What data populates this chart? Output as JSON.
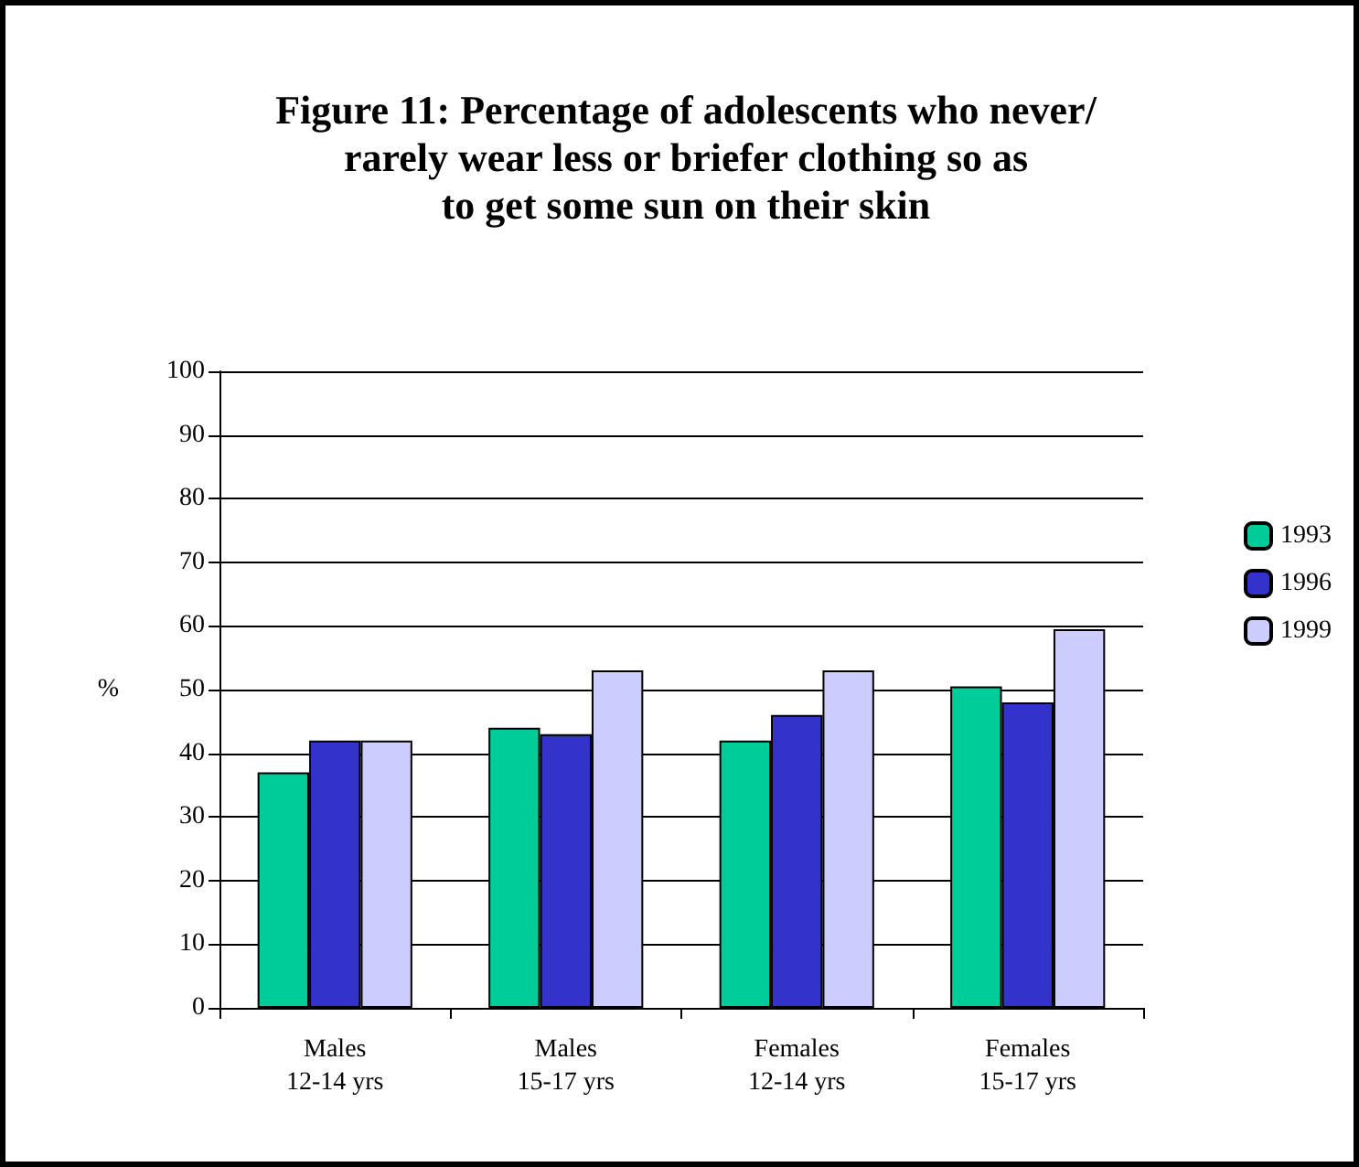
{
  "chart_data": {
    "type": "bar",
    "title": "Figure 11: Percentage of adolescents who never/\nrarely wear less or briefer clothing so as\nto get some sun on their skin",
    "ylabel": "%",
    "categories": [
      "Males\n12-14 yrs",
      "Males\n15-17 yrs",
      "Females\n12-14 yrs",
      "Females\n15-17 yrs"
    ],
    "series": [
      {
        "name": "1993",
        "color": "#00cc99",
        "values": [
          37,
          44,
          42,
          50.5
        ]
      },
      {
        "name": "1996",
        "color": "#3333cc",
        "values": [
          42,
          43,
          46,
          48
        ]
      },
      {
        "name": "1999",
        "color": "#ccccff",
        "values": [
          42,
          53,
          53,
          59.5
        ]
      }
    ],
    "ylim": [
      0,
      100
    ],
    "yticks": [
      0,
      10,
      20,
      30,
      40,
      50,
      60,
      70,
      80,
      90,
      100
    ],
    "grid": "y",
    "legend": "right"
  }
}
